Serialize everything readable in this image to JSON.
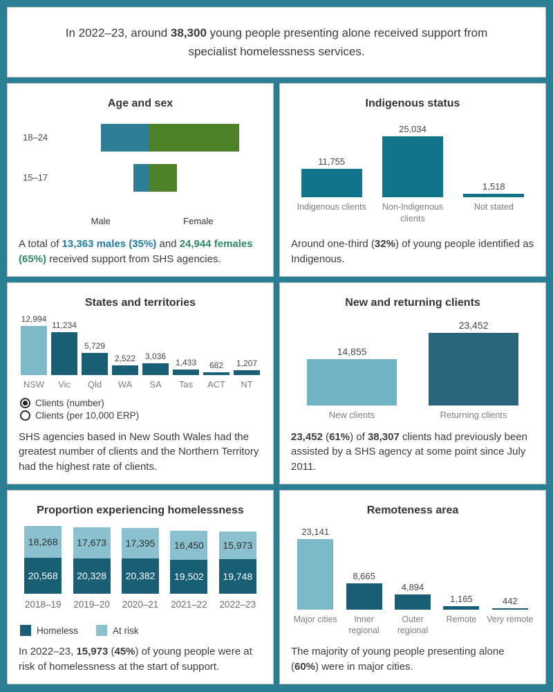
{
  "palette": {
    "page_bg": "#2A7E91",
    "male": "#2E7F96",
    "female": "#4E8227",
    "teal": "#11748A",
    "dark_teal": "#185F76",
    "light_blue": "#7DB9C9",
    "new_blue": "#6FB2C3",
    "returning": "#2B657C",
    "at_risk": "#8BC0CE",
    "male_text": "#1F7BA1",
    "female_text": "#2E8A62"
  },
  "header": {
    "segments": [
      {
        "t": "In 2022–23, around "
      },
      {
        "t": "38,300",
        "b": true
      },
      {
        "t": " young people presenting alone received support from specialist homelessness services."
      }
    ]
  },
  "chart_data": [
    {
      "id": "age_sex",
      "type": "diverging_bar",
      "title": "Age and sex",
      "categories": [
        "18–24",
        "15–17"
      ],
      "series": [
        {
          "name": "Male",
          "color": "male",
          "values": [
            10150,
            3250
          ]
        },
        {
          "name": "Female",
          "color": "female",
          "values": [
            19050,
            5900
          ]
        }
      ],
      "xmax": 19050,
      "note_totals": {
        "males": 13363,
        "females": 24944
      }
    },
    {
      "id": "indigenous_status",
      "type": "bar",
      "title": "Indigenous status",
      "categories": [
        "Indigenous clients",
        "Non-Indigenous clients",
        "Not stated"
      ],
      "values": [
        11755,
        25034,
        1518
      ],
      "bar_colors": [
        "teal",
        "teal",
        "teal"
      ],
      "ylim": [
        0,
        25034
      ]
    },
    {
      "id": "states_territories",
      "type": "bar",
      "title": "States and territories",
      "categories": [
        "NSW",
        "Vic",
        "Qld",
        "WA",
        "SA",
        "Tas",
        "ACT",
        "NT"
      ],
      "values": [
        12994,
        11234,
        5729,
        2522,
        3036,
        1433,
        682,
        1207
      ],
      "bar_colors": [
        "light_blue",
        "dark_teal",
        "dark_teal",
        "dark_teal",
        "dark_teal",
        "dark_teal",
        "dark_teal",
        "dark_teal"
      ],
      "ylim": [
        0,
        12994
      ]
    },
    {
      "id": "new_returning",
      "type": "bar",
      "title": "New and returning clients",
      "categories": [
        "New clients",
        "Returning clients"
      ],
      "values": [
        14855,
        23452
      ],
      "bar_colors": [
        "new_blue",
        "returning"
      ],
      "ylim": [
        0,
        23452
      ]
    },
    {
      "id": "homelessness",
      "type": "stacked_bar",
      "title": "Proportion experiencing homelessness",
      "categories": [
        "2018–19",
        "2019–20",
        "2020–21",
        "2021–22",
        "2022–23"
      ],
      "series": [
        {
          "name": "Homeless",
          "color": "dark_teal",
          "label_color": "#FFFFFF",
          "values": [
            20568,
            20328,
            20382,
            19502,
            19748
          ]
        },
        {
          "name": "At risk",
          "color": "at_risk",
          "label_color": "#2F2F2F",
          "values": [
            18268,
            17673,
            17395,
            16450,
            15973
          ]
        }
      ],
      "ylim": [
        0,
        38836
      ],
      "legend_position": "bottom-left"
    },
    {
      "id": "remoteness",
      "type": "bar",
      "title": "Remoteness area",
      "categories": [
        "Major cities",
        "Inner regional",
        "Outer regional",
        "Remote",
        "Very remote"
      ],
      "values": [
        23141,
        8665,
        4894,
        1165,
        442
      ],
      "bar_colors": [
        "light_blue",
        "dark_teal",
        "dark_teal",
        "dark_teal",
        "dark_teal"
      ],
      "ylim": [
        0,
        23141
      ]
    }
  ],
  "captions": {
    "age_sex": [
      {
        "t": "A total of "
      },
      {
        "t": "13,363 males (35%)",
        "b": true,
        "c": "male_text"
      },
      {
        "t": " and "
      },
      {
        "t": "24,944 females (65%)",
        "b": true,
        "c": "female_text"
      },
      {
        "t": " received support from SHS agencies."
      }
    ],
    "indigenous_status": [
      {
        "t": "Around one-third ("
      },
      {
        "t": "32%",
        "b": true
      },
      {
        "t": ") of young people identified as Indigenous."
      }
    ],
    "states_territories": [
      {
        "t": "SHS agencies based in New South Wales had the greatest number of clients and the Northern Territory had the highest rate of clients."
      }
    ],
    "new_returning": [
      {
        "t": "23,452",
        "b": true
      },
      {
        "t": " ("
      },
      {
        "t": "61%",
        "b": true
      },
      {
        "t": ") of "
      },
      {
        "t": "38,307",
        "b": true
      },
      {
        "t": " clients had previously been assisted by a SHS agency at some point since July 2011."
      }
    ],
    "homelessness": [
      {
        "t": "In 2022–23, "
      },
      {
        "t": "15,973",
        "b": true
      },
      {
        "t": " ("
      },
      {
        "t": "45%",
        "b": true
      },
      {
        "t": ") of young people were at risk of homelessness at the start of support."
      }
    ],
    "remoteness": [
      {
        "t": "The majority of young people presenting alone ("
      },
      {
        "t": "60%",
        "b": true
      },
      {
        "t": ") were in major cities."
      }
    ]
  },
  "states_toggle": [
    {
      "label": "Clients (number)",
      "selected": true
    },
    {
      "label": "Clients (per 10,000 ERP)",
      "selected": false
    }
  ]
}
